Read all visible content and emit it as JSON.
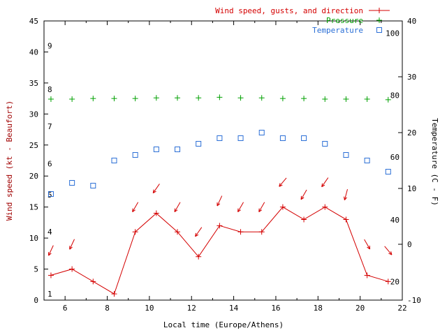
{
  "colors": {
    "axis": "#000000",
    "text": "#000000",
    "ylabel_left": "#a00000"
  },
  "labels": {
    "xlabel": "Local time (Europe/Athens)",
    "ylabel_left": "Wind speed (kt - Beaufort)",
    "ylabel_right": "Temperature (C - F)"
  },
  "chart_data": {
    "type": "line",
    "title": "",
    "xlabel": "Local time (Europe/Athens)",
    "ylabel_left": "Wind speed (kt - Beaufort)",
    "ylabel_right": "Temperature (C - F)",
    "grid": false,
    "legend_position": "top-right",
    "xlim": [
      5,
      22
    ],
    "ylim_left": [
      0,
      45
    ],
    "ylim_right": [
      -10,
      40
    ],
    "x_major_ticks": [
      6,
      8,
      10,
      12,
      14,
      16,
      18,
      20,
      22
    ],
    "x_minor_ticks": [
      5,
      7,
      9,
      11,
      13,
      15,
      17,
      19,
      21
    ],
    "y_left_ticks": [
      0,
      5,
      10,
      15,
      20,
      25,
      30,
      35,
      40,
      45
    ],
    "y_right_ticks": [
      -10,
      0,
      10,
      20,
      30,
      40
    ],
    "beaufort_scale_labels": [
      {
        "label": "1",
        "kt": 1
      },
      {
        "label": "4",
        "kt": 11
      },
      {
        "label": "5",
        "kt": 17
      },
      {
        "label": "6",
        "kt": 22
      },
      {
        "label": "7",
        "kt": 28
      },
      {
        "label": "8",
        "kt": 34
      },
      {
        "label": "9",
        "kt": 41
      }
    ],
    "fahrenheit_scale_labels": [
      {
        "label": "100",
        "c": 37.8
      },
      {
        "label": "80",
        "c": 26.7
      },
      {
        "label": "60",
        "c": 15.6
      },
      {
        "label": "40",
        "c": 4.4
      },
      {
        "label": "20",
        "c": -6.7
      }
    ],
    "x": [
      5.33,
      6.33,
      7.33,
      8.33,
      9.33,
      10.33,
      11.33,
      12.33,
      13.33,
      14.33,
      15.33,
      16.33,
      17.33,
      18.33,
      19.33,
      20.33,
      21.33
    ],
    "series": [
      {
        "name": "Wind speed, gusts, and direction",
        "color": "#d40000",
        "marker": "plus",
        "line": true,
        "axis": "left",
        "values": [
          4,
          5,
          3,
          1,
          11,
          14,
          11,
          7,
          12,
          11,
          11,
          15,
          13,
          15,
          13,
          4,
          3
        ],
        "gusts": [
          8,
          9,
          null,
          null,
          15,
          18,
          15,
          11,
          16,
          15,
          15,
          19,
          17,
          19,
          17,
          9,
          8
        ],
        "arrow_angles_deg": [
          205,
          205,
          null,
          null,
          210,
          215,
          210,
          215,
          205,
          210,
          210,
          220,
          210,
          215,
          195,
          150,
          140
        ]
      },
      {
        "name": "Pressure",
        "color": "#00a000",
        "marker": "plus",
        "line": false,
        "axis": "left",
        "values": [
          32.4,
          32.4,
          32.5,
          32.5,
          32.5,
          32.6,
          32.6,
          32.6,
          32.7,
          32.6,
          32.6,
          32.5,
          32.5,
          32.4,
          32.4,
          32.4,
          32.3
        ]
      },
      {
        "name": "Temperature",
        "color": "#2b6fd6",
        "marker": "square-open",
        "line": false,
        "axis": "right",
        "values": [
          9,
          11,
          10.5,
          15,
          16,
          17,
          17,
          18,
          19,
          19,
          20,
          19,
          19,
          18,
          16,
          15,
          13
        ]
      }
    ]
  }
}
